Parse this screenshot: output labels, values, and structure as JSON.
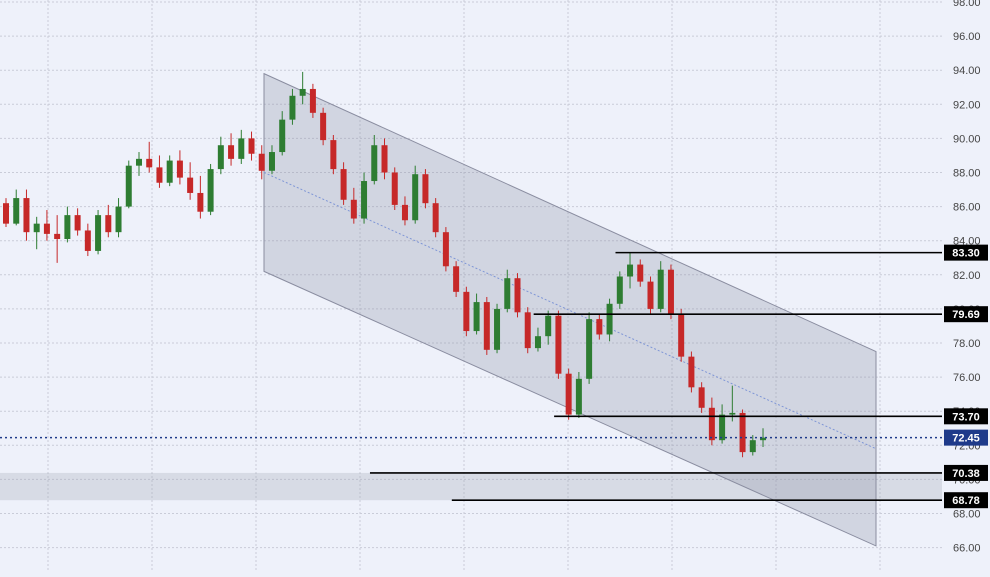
{
  "chart_data": {
    "type": "candlestick",
    "title": "",
    "xlabel": "",
    "ylabel": "",
    "ylim": [
      65.0,
      98.0
    ],
    "grid": true,
    "y_ticks": [
      "66.00",
      "68.00",
      "70.00",
      "72.00",
      "74.00",
      "76.00",
      "78.00",
      "80.00",
      "82.00",
      "84.00",
      "86.00",
      "88.00",
      "90.00",
      "92.00",
      "94.00",
      "96.00",
      "98.00"
    ],
    "colors": {
      "up": "#2e7d32",
      "down": "#c62828",
      "background": "#eef1fa",
      "channel": "#6b6b80",
      "last_price": "#1e3a8a"
    },
    "channel": {
      "upper": {
        "start": [
          0,
          93.8
        ],
        "end": [
          100,
          77.5
        ]
      },
      "mid": {
        "start": [
          0,
          88.0
        ],
        "end": [
          100,
          71.8
        ]
      },
      "lower": {
        "start": [
          0,
          82.2
        ],
        "end": [
          100,
          66.1
        ]
      }
    },
    "support_zone": [
      68.78,
      70.38
    ],
    "levels": [
      {
        "value": 83.3,
        "label": "83.30",
        "start": 63
      },
      {
        "value": 79.69,
        "label": "79.69",
        "start": 55
      },
      {
        "value": 73.7,
        "label": "73.70",
        "start": 57
      },
      {
        "value": 70.38,
        "label": "70.38",
        "start": 39
      },
      {
        "value": 68.78,
        "label": "68.78",
        "start": 47
      }
    ],
    "last_price": {
      "value": 72.45,
      "label": "72.45"
    },
    "candles": [
      [
        86.2,
        86.5,
        84.8,
        85.0
      ],
      [
        85.0,
        87.0,
        84.9,
        86.5
      ],
      [
        86.5,
        87.0,
        84.0,
        84.5
      ],
      [
        84.5,
        85.4,
        83.5,
        85.0
      ],
      [
        85.0,
        85.8,
        84.0,
        84.4
      ],
      [
        84.4,
        85.5,
        82.7,
        84.1
      ],
      [
        84.1,
        86.0,
        83.9,
        85.5
      ],
      [
        85.5,
        85.9,
        84.3,
        84.6
      ],
      [
        84.6,
        85.0,
        83.1,
        83.4
      ],
      [
        83.4,
        85.8,
        83.2,
        85.5
      ],
      [
        85.5,
        86.1,
        84.2,
        84.5
      ],
      [
        84.5,
        86.5,
        84.2,
        86.0
      ],
      [
        86.0,
        88.7,
        85.9,
        88.4
      ],
      [
        88.4,
        89.2,
        87.8,
        88.8
      ],
      [
        88.8,
        89.8,
        88.0,
        88.3
      ],
      [
        88.3,
        89.0,
        87.1,
        87.4
      ],
      [
        87.4,
        89.0,
        87.2,
        88.7
      ],
      [
        88.7,
        89.3,
        87.3,
        87.7
      ],
      [
        87.7,
        88.6,
        86.4,
        86.8
      ],
      [
        86.8,
        87.8,
        85.3,
        85.7
      ],
      [
        85.7,
        88.5,
        85.5,
        88.2
      ],
      [
        88.2,
        90.1,
        87.9,
        89.6
      ],
      [
        89.6,
        90.3,
        88.4,
        88.8
      ],
      [
        88.8,
        90.5,
        88.5,
        90.0
      ],
      [
        90.0,
        90.4,
        88.7,
        89.1
      ],
      [
        89.1,
        89.6,
        87.6,
        88.1
      ],
      [
        88.1,
        89.6,
        87.9,
        89.2
      ],
      [
        89.2,
        91.6,
        89.0,
        91.1
      ],
      [
        91.1,
        92.9,
        90.8,
        92.5
      ],
      [
        92.5,
        93.9,
        92.0,
        92.9
      ],
      [
        92.9,
        93.2,
        91.2,
        91.5
      ],
      [
        91.5,
        91.8,
        89.6,
        89.9
      ],
      [
        89.9,
        90.2,
        87.9,
        88.2
      ],
      [
        88.2,
        88.6,
        86.1,
        86.4
      ],
      [
        86.4,
        87.1,
        85.0,
        85.3
      ],
      [
        85.3,
        88.0,
        85.0,
        87.5
      ],
      [
        87.5,
        90.2,
        87.3,
        89.6
      ],
      [
        89.6,
        90.0,
        87.6,
        88.0
      ],
      [
        88.0,
        88.3,
        85.8,
        86.1
      ],
      [
        86.1,
        86.6,
        84.9,
        85.2
      ],
      [
        85.2,
        88.4,
        85.0,
        87.9
      ],
      [
        87.9,
        88.2,
        85.9,
        86.2
      ],
      [
        86.2,
        86.5,
        84.2,
        84.5
      ],
      [
        84.5,
        84.8,
        82.2,
        82.5
      ],
      [
        82.5,
        82.8,
        80.7,
        81.0
      ],
      [
        81.0,
        81.3,
        78.4,
        78.7
      ],
      [
        78.7,
        80.9,
        78.5,
        80.4
      ],
      [
        80.4,
        80.7,
        77.3,
        77.6
      ],
      [
        77.6,
        80.3,
        77.4,
        80.0
      ],
      [
        80.0,
        82.3,
        79.8,
        81.8
      ],
      [
        81.8,
        82.1,
        79.5,
        79.8
      ],
      [
        79.8,
        80.1,
        77.4,
        77.7
      ],
      [
        77.7,
        78.9,
        77.5,
        78.4
      ],
      [
        78.4,
        79.9,
        77.9,
        79.6
      ],
      [
        79.6,
        79.9,
        75.9,
        76.2
      ],
      [
        76.2,
        76.5,
        73.5,
        73.8
      ],
      [
        73.8,
        76.3,
        73.6,
        75.9
      ],
      [
        75.9,
        79.8,
        75.6,
        79.4
      ],
      [
        79.4,
        79.7,
        78.2,
        78.5
      ],
      [
        78.5,
        80.6,
        78.1,
        80.3
      ],
      [
        80.3,
        82.2,
        80.0,
        81.9
      ],
      [
        81.9,
        83.3,
        81.2,
        82.6
      ],
      [
        82.6,
        82.9,
        81.3,
        81.6
      ],
      [
        81.6,
        81.9,
        79.7,
        80.0
      ],
      [
        80.0,
        82.8,
        79.8,
        82.3
      ],
      [
        82.3,
        82.6,
        79.4,
        79.7
      ],
      [
        79.7,
        80.0,
        76.9,
        77.2
      ],
      [
        77.2,
        77.5,
        75.1,
        75.4
      ],
      [
        75.4,
        75.7,
        73.9,
        74.2
      ],
      [
        74.2,
        74.8,
        72.0,
        72.3
      ],
      [
        72.3,
        74.4,
        72.1,
        73.8
      ],
      [
        73.8,
        75.5,
        73.4,
        73.9
      ],
      [
        73.9,
        74.1,
        71.3,
        71.6
      ],
      [
        71.6,
        72.6,
        71.4,
        72.3
      ],
      [
        72.3,
        73.0,
        71.9,
        72.45
      ]
    ]
  }
}
